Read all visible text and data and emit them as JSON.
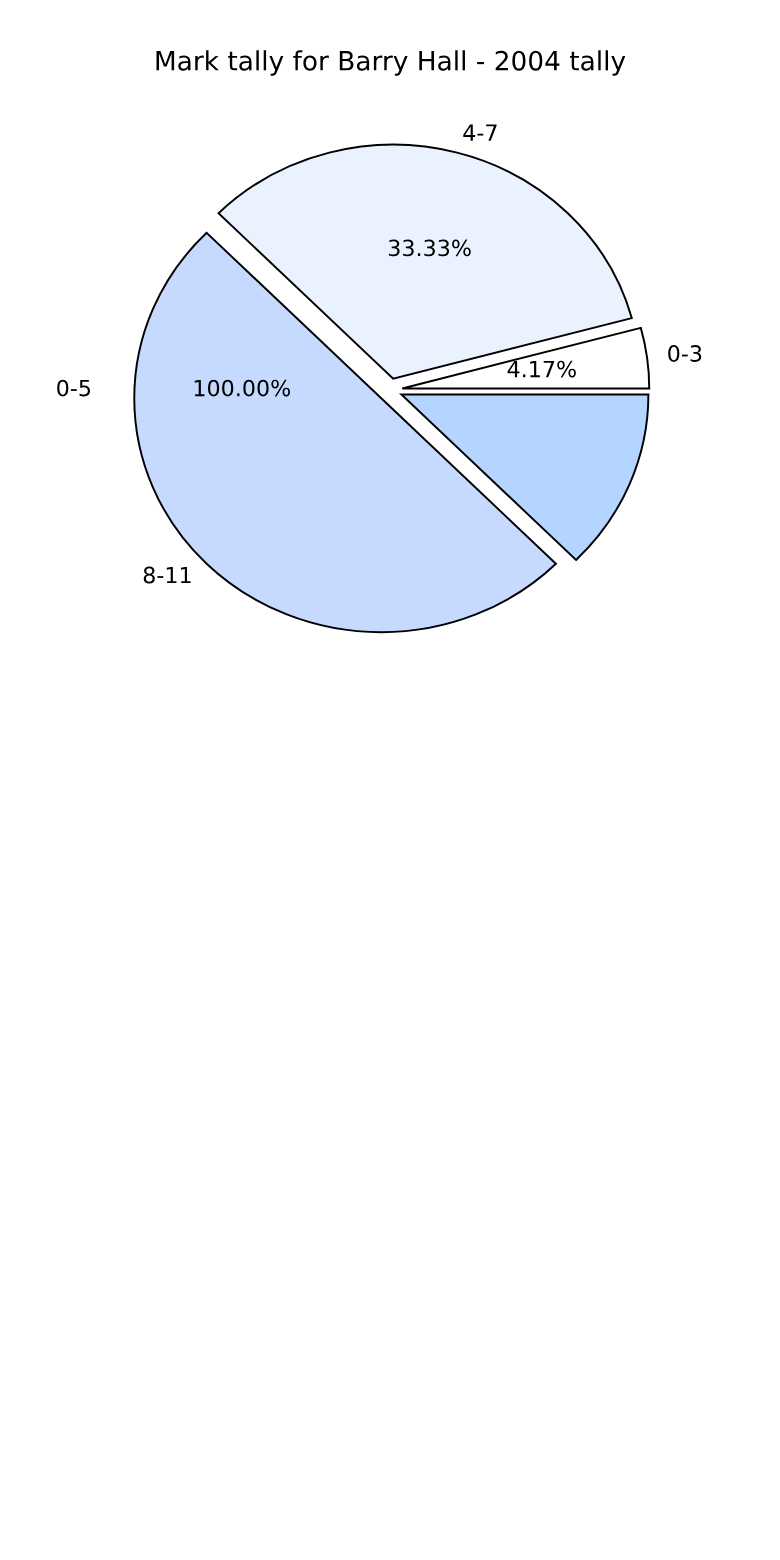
{
  "chart_data": {
    "type": "pie",
    "title": "Mark tally for Barry Hall - 2004 tally",
    "categories": [
      "0-3",
      "4-7",
      "8-11",
      null
    ],
    "values": [
      4.17,
      33.33,
      50,
      12.5
    ],
    "colors": [
      "#ffffff",
      "#eaf2ff",
      "#c6d9ff",
      "#b3d5ff"
    ],
    "value_labels": [
      "4.17%",
      "33.33%",
      null,
      null
    ],
    "annotations": [
      "0-5",
      "100.00%"
    ],
    "legend": false
  }
}
